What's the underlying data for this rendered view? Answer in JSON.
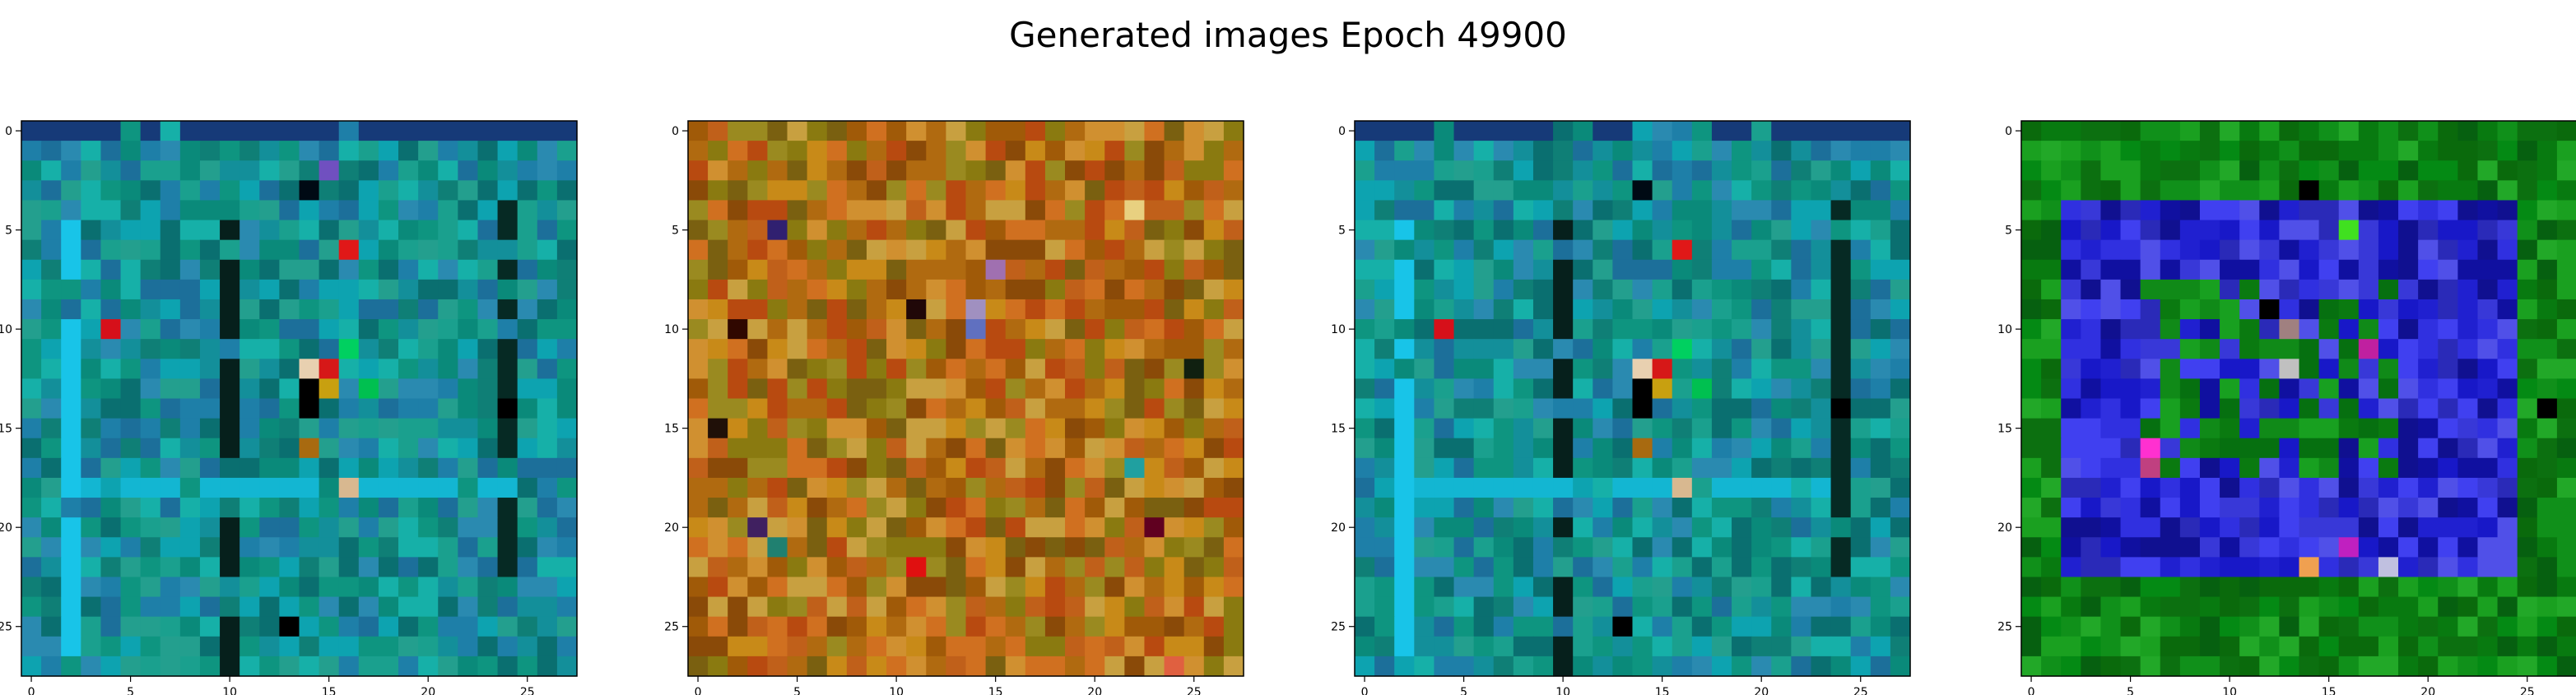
{
  "figure": {
    "title": "Generated images Epoch 49900"
  },
  "chart_data": [
    {
      "type": "heatmap",
      "title": "",
      "xlabel": "",
      "ylabel": "",
      "grid": false,
      "image_shape": [
        28,
        28
      ],
      "xlim": [
        -0.5,
        27.5
      ],
      "ylim": [
        27.5,
        -0.5
      ],
      "xticks": [
        0,
        5,
        10,
        15,
        20,
        25
      ],
      "yticks": [
        0,
        5,
        10,
        15,
        20,
        25
      ],
      "base_color": "#0f8f86",
      "palette": [
        "#0a8a7a",
        "#1aa08e",
        "#0f7f76",
        "#138f9a",
        "#1e7fa8",
        "#0da3b0",
        "#239f8e",
        "#0a6f70",
        "#16b0a8",
        "#2a8ab0",
        "#0e9580",
        "#1c6f9a"
      ],
      "seed": 11,
      "features": [
        {
          "kind": "row",
          "index": 0,
          "color": "#163a78"
        },
        {
          "kind": "col",
          "index": 10,
          "color": "#06201c",
          "from": 5,
          "to": 27
        },
        {
          "kind": "col",
          "index": 24,
          "color": "#062a24",
          "from": 4,
          "to": 22
        },
        {
          "kind": "col",
          "index": 2,
          "color": "#18c4e8",
          "from": 5,
          "to": 26
        },
        {
          "kind": "row",
          "index": 18,
          "color": "#13b6d2",
          "from": 3,
          "to": 24
        },
        {
          "kind": "cell",
          "x": 4,
          "y": 10,
          "color": "#d6101a"
        },
        {
          "kind": "cell",
          "x": 16,
          "y": 6,
          "color": "#e01818"
        },
        {
          "kind": "cell",
          "x": 15,
          "y": 12,
          "color": "#d61818"
        },
        {
          "kind": "cell",
          "x": 14,
          "y": 12,
          "color": "#e8d0b0"
        },
        {
          "kind": "cell",
          "x": 14,
          "y": 13,
          "color": "#000000"
        },
        {
          "kind": "cell",
          "x": 14,
          "y": 14,
          "color": "#000000"
        },
        {
          "kind": "cell",
          "x": 15,
          "y": 13,
          "color": "#c8a010"
        },
        {
          "kind": "cell",
          "x": 14,
          "y": 16,
          "color": "#a86a10"
        },
        {
          "kind": "cell",
          "x": 16,
          "y": 18,
          "color": "#d8b890"
        },
        {
          "kind": "cell",
          "x": 13,
          "y": 25,
          "color": "#000000"
        },
        {
          "kind": "cell",
          "x": 14,
          "y": 3,
          "color": "#000a14"
        },
        {
          "kind": "cell",
          "x": 15,
          "y": 2,
          "color": "#7050c0"
        },
        {
          "kind": "cell",
          "x": 16,
          "y": 11,
          "color": "#00d060"
        },
        {
          "kind": "cell",
          "x": 17,
          "y": 13,
          "color": "#00c050"
        },
        {
          "kind": "cell",
          "x": 24,
          "y": 14,
          "color": "#000000"
        }
      ]
    },
    {
      "type": "heatmap",
      "title": "",
      "xlabel": "",
      "ylabel": "",
      "grid": false,
      "image_shape": [
        28,
        28
      ],
      "xlim": [
        -0.5,
        27.5
      ],
      "ylim": [
        27.5,
        -0.5
      ],
      "xticks": [
        0,
        5,
        10,
        15,
        20,
        25
      ],
      "yticks": [
        0,
        5,
        10,
        15,
        20,
        25
      ],
      "base_color": "#b07010",
      "palette": [
        "#b06a10",
        "#c88a18",
        "#a05a08",
        "#8a7a10",
        "#c0601a",
        "#d09030",
        "#9a8a20",
        "#b84a10",
        "#7a6010",
        "#c8a040",
        "#d07020",
        "#8a4a08"
      ],
      "seed": 23,
      "features": [
        {
          "kind": "cell",
          "x": 15,
          "y": 7,
          "color": "#a070b0"
        },
        {
          "kind": "cell",
          "x": 14,
          "y": 9,
          "color": "#a090c0"
        },
        {
          "kind": "cell",
          "x": 14,
          "y": 10,
          "color": "#6070c0"
        },
        {
          "kind": "cell",
          "x": 4,
          "y": 5,
          "color": "#302070"
        },
        {
          "kind": "cell",
          "x": 22,
          "y": 17,
          "color": "#20a0a0"
        },
        {
          "kind": "cell",
          "x": 23,
          "y": 20,
          "color": "#600020"
        },
        {
          "kind": "cell",
          "x": 25,
          "y": 12,
          "color": "#102010"
        },
        {
          "kind": "cell",
          "x": 3,
          "y": 20,
          "color": "#402060"
        },
        {
          "kind": "cell",
          "x": 4,
          "y": 21,
          "color": "#208070"
        },
        {
          "kind": "cell",
          "x": 2,
          "y": 10,
          "color": "#300800"
        },
        {
          "kind": "cell",
          "x": 1,
          "y": 15,
          "color": "#201008"
        },
        {
          "kind": "cell",
          "x": 11,
          "y": 9,
          "color": "#200808"
        },
        {
          "kind": "cell",
          "x": 22,
          "y": 4,
          "color": "#e8d080"
        },
        {
          "kind": "cell",
          "x": 11,
          "y": 22,
          "color": "#e01010"
        },
        {
          "kind": "cell",
          "x": 24,
          "y": 27,
          "color": "#e06040"
        }
      ]
    },
    {
      "type": "heatmap",
      "title": "",
      "xlabel": "",
      "ylabel": "",
      "grid": false,
      "image_shape": [
        28,
        28
      ],
      "xlim": [
        -0.5,
        27.5
      ],
      "ylim": [
        27.5,
        -0.5
      ],
      "xticks": [
        0,
        5,
        10,
        15,
        20,
        25
      ],
      "yticks": [
        0,
        5,
        10,
        15,
        20,
        25
      ],
      "base_color": "#0f8f86",
      "palette": [
        "#0a8a7a",
        "#1aa08e",
        "#0f7f76",
        "#138f9a",
        "#1e7fa8",
        "#0da3b0",
        "#239f8e",
        "#0a6f70",
        "#16b0a8",
        "#2a8ab0",
        "#0e9580",
        "#1c6f9a"
      ],
      "seed": 37,
      "features": [
        {
          "kind": "row",
          "index": 0,
          "color": "#163a78"
        },
        {
          "kind": "col",
          "index": 10,
          "color": "#06201c",
          "from": 5,
          "to": 27
        },
        {
          "kind": "col",
          "index": 24,
          "color": "#062a24",
          "from": 4,
          "to": 22
        },
        {
          "kind": "col",
          "index": 2,
          "color": "#18c4e8",
          "from": 5,
          "to": 26
        },
        {
          "kind": "row",
          "index": 18,
          "color": "#13b6d2",
          "from": 3,
          "to": 24
        },
        {
          "kind": "cell",
          "x": 4,
          "y": 10,
          "color": "#d6101a"
        },
        {
          "kind": "cell",
          "x": 16,
          "y": 6,
          "color": "#e01818"
        },
        {
          "kind": "cell",
          "x": 15,
          "y": 12,
          "color": "#d61818"
        },
        {
          "kind": "cell",
          "x": 14,
          "y": 12,
          "color": "#e8d0b0"
        },
        {
          "kind": "cell",
          "x": 14,
          "y": 13,
          "color": "#000000"
        },
        {
          "kind": "cell",
          "x": 14,
          "y": 14,
          "color": "#000000"
        },
        {
          "kind": "cell",
          "x": 15,
          "y": 13,
          "color": "#c8a010"
        },
        {
          "kind": "cell",
          "x": 14,
          "y": 16,
          "color": "#a86a10"
        },
        {
          "kind": "cell",
          "x": 16,
          "y": 18,
          "color": "#d8b890"
        },
        {
          "kind": "cell",
          "x": 13,
          "y": 25,
          "color": "#000000"
        },
        {
          "kind": "cell",
          "x": 14,
          "y": 3,
          "color": "#000a14"
        },
        {
          "kind": "cell",
          "x": 16,
          "y": 11,
          "color": "#00d060"
        },
        {
          "kind": "cell",
          "x": 17,
          "y": 13,
          "color": "#00c050"
        },
        {
          "kind": "cell",
          "x": 24,
          "y": 14,
          "color": "#000000"
        }
      ]
    },
    {
      "type": "heatmap",
      "title": "",
      "xlabel": "",
      "ylabel": "",
      "grid": false,
      "image_shape": [
        28,
        28
      ],
      "xlim": [
        -0.5,
        27.5
      ],
      "ylim": [
        27.5,
        -0.5
      ],
      "xticks": [
        0,
        5,
        10,
        15,
        20,
        25
      ],
      "yticks": [
        0,
        5,
        10,
        15,
        20,
        25
      ],
      "base_color": "#0a8010",
      "palette": [
        "#087a10",
        "#10901a",
        "#0a6a0c",
        "#1aa020",
        "#048a14",
        "#0c7010",
        "#22a828",
        "#066010"
      ],
      "seed": 53,
      "inner_region": {
        "x0": 2,
        "y0": 4,
        "x1": 24,
        "y1": 22,
        "palette": [
          "#2020d0",
          "#3030e0",
          "#1010a0",
          "#4040f0",
          "#2a2ab8",
          "#1818c8",
          "#5050e8",
          "#101090",
          "#3838d8"
        ]
      },
      "inner_green": {
        "x0": 6,
        "y0": 8,
        "x1": 18,
        "y1": 17,
        "palette": [
          "#108a18",
          "#0a7a10",
          "#18a020",
          "#067010"
        ]
      },
      "features": [
        {
          "kind": "cell",
          "x": 13,
          "y": 10,
          "color": "#a08080"
        },
        {
          "kind": "cell",
          "x": 13,
          "y": 12,
          "color": "#c0c0c0"
        },
        {
          "kind": "cell",
          "x": 17,
          "y": 11,
          "color": "#c020a0"
        },
        {
          "kind": "cell",
          "x": 6,
          "y": 16,
          "color": "#ff30d0"
        },
        {
          "kind": "cell",
          "x": 6,
          "y": 17,
          "color": "#c04080"
        },
        {
          "kind": "cell",
          "x": 14,
          "y": 22,
          "color": "#f0a050"
        },
        {
          "kind": "cell",
          "x": 18,
          "y": 22,
          "color": "#c0c0e0"
        },
        {
          "kind": "cell",
          "x": 16,
          "y": 21,
          "color": "#c020c0"
        },
        {
          "kind": "cell",
          "x": 12,
          "y": 9,
          "color": "#000000"
        },
        {
          "kind": "cell",
          "x": 26,
          "y": 14,
          "color": "#000000"
        },
        {
          "kind": "cell",
          "x": 14,
          "y": 3,
          "color": "#000000"
        },
        {
          "kind": "cell",
          "x": 16,
          "y": 5,
          "color": "#40e020"
        }
      ]
    }
  ]
}
